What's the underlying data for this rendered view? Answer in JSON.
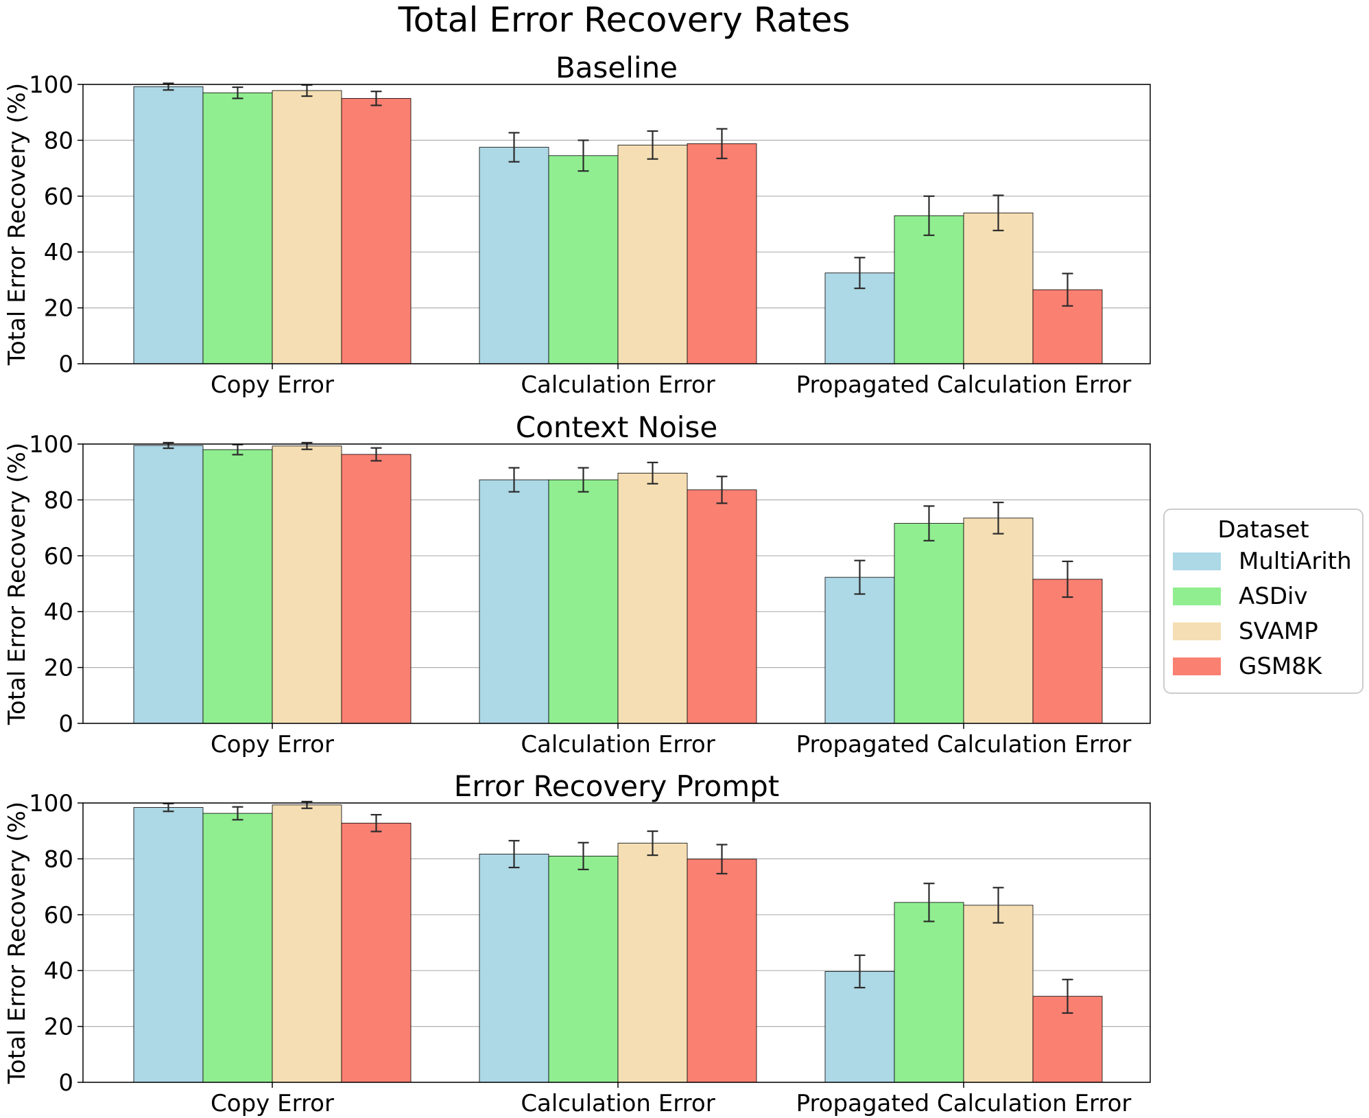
{
  "chart_data": {
    "type": "bar",
    "title": "Total Error Recovery Rates",
    "ylabel": "Total Error Recovery (%)",
    "ylim": [
      0,
      100
    ],
    "yticks": [
      0,
      20,
      40,
      60,
      80,
      100
    ],
    "grid": "y",
    "categories": [
      "Copy Error",
      "Calculation Error",
      "Propagated Calculation Error"
    ],
    "legend": {
      "title": "Dataset",
      "placement": "right",
      "entries": [
        {
          "name": "MultiArith",
          "color": "#add8e6"
        },
        {
          "name": "ASDiv",
          "color": "#90ee90"
        },
        {
          "name": "SVAMP",
          "color": "#f5deb3"
        },
        {
          "name": "GSM8K",
          "color": "#fa8072"
        }
      ]
    },
    "panels": [
      {
        "title": "Baseline",
        "series": [
          {
            "name": "MultiArith",
            "values": [
              99.2,
              77.5,
              32.5
            ],
            "errors": [
              1.2,
              5.2,
              5.5
            ]
          },
          {
            "name": "ASDiv",
            "values": [
              97.0,
              74.5,
              53.0
            ],
            "errors": [
              2.0,
              5.5,
              7.0
            ]
          },
          {
            "name": "SVAMP",
            "values": [
              97.8,
              78.3,
              54.0
            ],
            "errors": [
              2.0,
              5.0,
              6.3
            ]
          },
          {
            "name": "GSM8K",
            "values": [
              95.0,
              78.8,
              26.5
            ],
            "errors": [
              2.5,
              5.3,
              5.8
            ]
          }
        ]
      },
      {
        "title": "Context Noise",
        "series": [
          {
            "name": "MultiArith",
            "values": [
              99.5,
              87.2,
              52.3
            ],
            "errors": [
              1.0,
              4.3,
              6.0
            ]
          },
          {
            "name": "ASDiv",
            "values": [
              98.0,
              87.2,
              71.6
            ],
            "errors": [
              1.8,
              4.3,
              6.2
            ]
          },
          {
            "name": "SVAMP",
            "values": [
              99.3,
              89.6,
              73.5
            ],
            "errors": [
              1.2,
              3.8,
              5.6
            ]
          },
          {
            "name": "GSM8K",
            "values": [
              96.3,
              83.6,
              51.6
            ],
            "errors": [
              2.3,
              4.8,
              6.4
            ]
          }
        ]
      },
      {
        "title": "Error Recovery Prompt",
        "series": [
          {
            "name": "MultiArith",
            "values": [
              98.4,
              81.7,
              39.7
            ],
            "errors": [
              1.4,
              4.8,
              5.8
            ]
          },
          {
            "name": "ASDiv",
            "values": [
              96.3,
              81.0,
              64.4
            ],
            "errors": [
              2.3,
              4.8,
              6.8
            ]
          },
          {
            "name": "SVAMP",
            "values": [
              99.3,
              85.6,
              63.4
            ],
            "errors": [
              1.2,
              4.3,
              6.3
            ]
          },
          {
            "name": "GSM8K",
            "values": [
              92.8,
              79.9,
              30.8
            ],
            "errors": [
              3.0,
              5.2,
              6.0
            ]
          }
        ]
      }
    ]
  }
}
